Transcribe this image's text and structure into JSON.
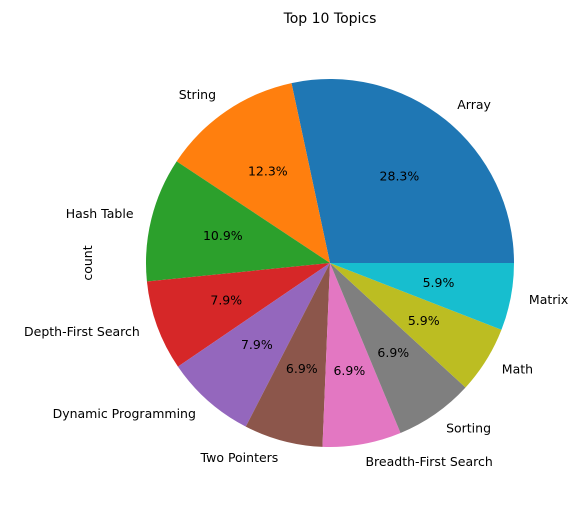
{
  "chart_data": {
    "type": "pie",
    "title": "Top 10 Topics",
    "ylabel": "count",
    "slices": [
      {
        "label": "Array",
        "pct": "28.3%",
        "value": 28.3,
        "color": "#1f77b4"
      },
      {
        "label": "String",
        "pct": "12.3%",
        "value": 12.3,
        "color": "#ff7f0e"
      },
      {
        "label": "Hash Table",
        "pct": "10.9%",
        "value": 10.9,
        "color": "#2ca02c"
      },
      {
        "label": "Depth-First Search",
        "pct": "7.9%",
        "value": 7.9,
        "color": "#d62728"
      },
      {
        "label": "Dynamic Programming",
        "pct": "7.9%",
        "value": 7.9,
        "color": "#9467bd"
      },
      {
        "label": "Two Pointers",
        "pct": "6.9%",
        "value": 6.9,
        "color": "#8c564b"
      },
      {
        "label": "Breadth-First Search",
        "pct": "6.9%",
        "value": 6.9,
        "color": "#e377c2"
      },
      {
        "label": "Sorting",
        "pct": "6.9%",
        "value": 6.9,
        "color": "#7f7f7f"
      },
      {
        "label": "Math",
        "pct": "5.9%",
        "value": 5.9,
        "color": "#bcbd22"
      },
      {
        "label": "Matrix",
        "pct": "5.9%",
        "value": 5.9,
        "color": "#17becf"
      }
    ]
  }
}
